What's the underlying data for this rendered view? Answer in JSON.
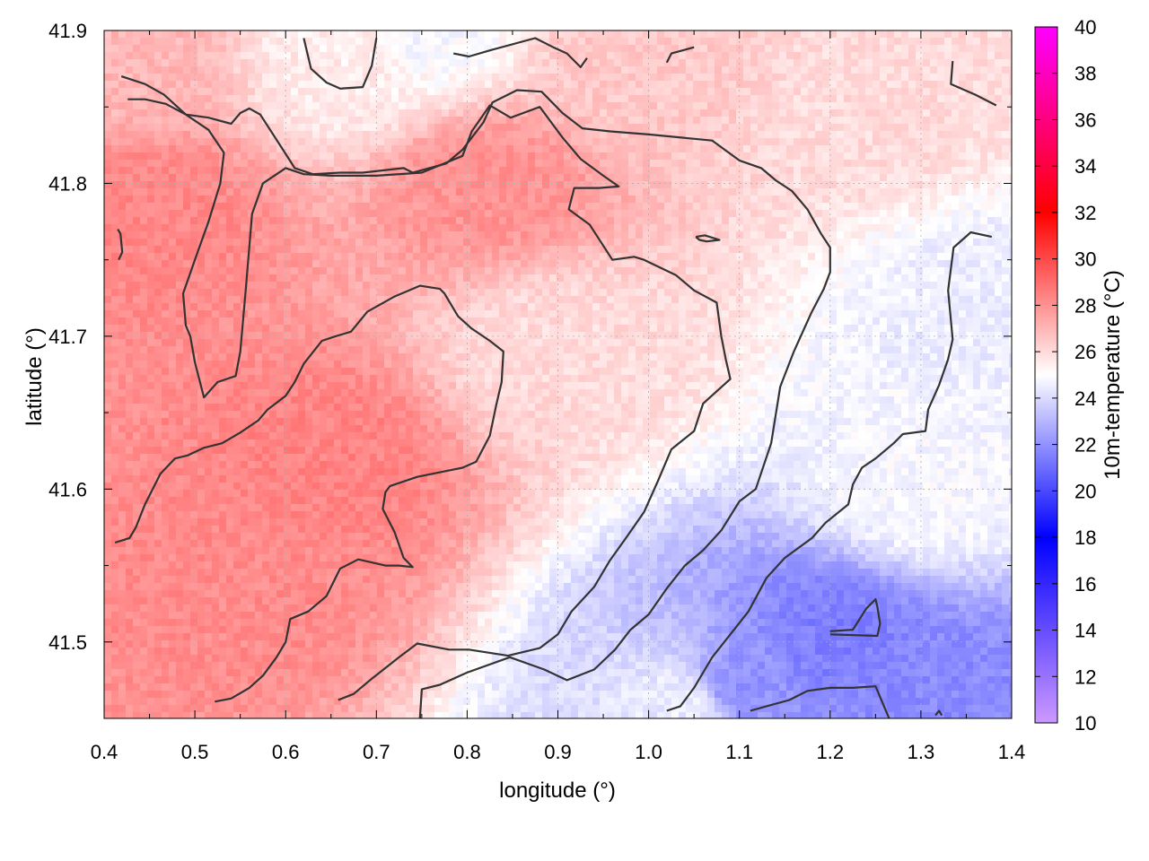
{
  "chart_data": {
    "type": "heatmap",
    "xlabel": "longitude (°)",
    "ylabel": "latitude (°)",
    "colorbar_label": "10m-temperature (°C)",
    "xlim": [
      0.4,
      1.4
    ],
    "ylim": [
      41.45,
      41.9
    ],
    "xticks": [
      "0.4",
      "0.5",
      "0.6",
      "0.7",
      "0.8",
      "0.9",
      "1.0",
      "1.1",
      "1.2",
      "1.3",
      "1.4"
    ],
    "yticks": [
      "41.5",
      "41.6",
      "41.7",
      "41.8",
      "41.9"
    ],
    "colorbar_range": [
      10,
      40
    ],
    "colorbar_ticks": [
      "10",
      "12",
      "14",
      "16",
      "18",
      "20",
      "22",
      "24",
      "26",
      "28",
      "30",
      "32",
      "34",
      "36",
      "38",
      "40"
    ],
    "colormap": [
      {
        "value": 10,
        "color": "#cc99ff"
      },
      {
        "value": 18,
        "color": "#0000ff"
      },
      {
        "value": 25,
        "color": "#ffffff"
      },
      {
        "value": 32,
        "color": "#ff0000"
      },
      {
        "value": 40,
        "color": "#ff00ff"
      }
    ],
    "grid": true,
    "field_regions": [
      {
        "lon": 0.45,
        "lat": 41.78,
        "temp": 28.3
      },
      {
        "lon": 0.65,
        "lat": 41.62,
        "temp": 28.4
      },
      {
        "lon": 0.55,
        "lat": 41.54,
        "temp": 28.2
      },
      {
        "lon": 0.82,
        "lat": 41.8,
        "temp": 28.0
      },
      {
        "lon": 0.9,
        "lat": 41.69,
        "temp": 26.0
      },
      {
        "lon": 0.42,
        "lat": 41.88,
        "temp": 27.0
      },
      {
        "lon": 0.98,
        "lat": 41.88,
        "temp": 26.5
      },
      {
        "lon": 1.25,
        "lat": 41.85,
        "temp": 26.0
      },
      {
        "lon": 1.38,
        "lat": 41.72,
        "temp": 24.5
      },
      {
        "lon": 1.3,
        "lat": 41.6,
        "temp": 24.8
      },
      {
        "lon": 1.2,
        "lat": 41.5,
        "temp": 21.5
      },
      {
        "lon": 1.1,
        "lat": 41.47,
        "temp": 22.0
      },
      {
        "lon": 1.32,
        "lat": 41.46,
        "temp": 21.8
      },
      {
        "lon": 1.04,
        "lat": 41.46,
        "temp": 24.5
      },
      {
        "lon": 0.68,
        "lat": 41.88,
        "temp": 25.5
      },
      {
        "lon": 0.75,
        "lat": 41.9,
        "temp": 24.8
      }
    ],
    "contours": [
      [
        [
          0.419,
          41.87
        ],
        [
          0.445,
          41.865
        ],
        [
          0.466,
          41.858
        ],
        [
          0.49,
          41.845
        ],
        [
          0.515,
          41.843
        ],
        [
          0.54,
          41.839
        ],
        [
          0.55,
          41.846
        ],
        [
          0.56,
          41.849
        ],
        [
          0.572,
          41.845
        ],
        [
          0.597,
          41.822
        ],
        [
          0.61,
          41.81
        ],
        [
          0.63,
          41.806
        ],
        [
          0.66,
          41.807
        ],
        [
          0.685,
          41.807
        ],
        [
          0.73,
          41.81
        ],
        [
          0.74,
          41.807
        ],
        [
          0.777,
          41.813
        ],
        [
          0.795,
          41.822
        ],
        [
          0.818,
          41.84
        ],
        [
          0.828,
          41.853
        ],
        [
          0.855,
          41.861
        ],
        [
          0.882,
          41.86
        ],
        [
          0.905,
          41.846
        ],
        [
          0.927,
          41.836
        ],
        [
          0.958,
          41.834
        ],
        [
          1.0,
          41.832
        ],
        [
          1.07,
          41.828
        ],
        [
          1.1,
          41.815
        ],
        [
          1.124,
          41.81
        ],
        [
          1.14,
          41.802
        ],
        [
          1.158,
          41.795
        ],
        [
          1.175,
          41.783
        ],
        [
          1.19,
          41.767
        ],
        [
          1.2,
          41.758
        ],
        [
          1.2,
          41.742
        ],
        [
          1.193,
          41.731
        ],
        [
          1.179,
          41.715
        ],
        [
          1.16,
          41.69
        ],
        [
          1.145,
          41.667
        ],
        [
          1.135,
          41.63
        ],
        [
          1.118,
          41.6
        ],
        [
          1.1,
          41.592
        ],
        [
          1.08,
          41.573
        ],
        [
          1.06,
          41.56
        ],
        [
          1.04,
          41.55
        ],
        [
          1.02,
          41.535
        ],
        [
          1.0,
          41.518
        ],
        [
          0.98,
          41.508
        ],
        [
          0.963,
          41.495
        ],
        [
          0.94,
          41.482
        ],
        [
          0.91,
          41.475
        ],
        [
          0.885,
          41.482
        ],
        [
          0.847,
          41.49
        ],
        [
          0.8,
          41.48
        ],
        [
          0.77,
          41.472
        ],
        [
          0.75,
          41.469
        ],
        [
          0.748,
          41.45
        ]
      ],
      [
        [
          0.426,
          41.855
        ],
        [
          0.445,
          41.855
        ],
        [
          0.468,
          41.852
        ],
        [
          0.49,
          41.845
        ],
        [
          0.515,
          41.835
        ],
        [
          0.532,
          41.82
        ],
        [
          0.528,
          41.8
        ],
        [
          0.515,
          41.775
        ],
        [
          0.5,
          41.75
        ],
        [
          0.487,
          41.728
        ],
        [
          0.49,
          41.707
        ],
        [
          0.495,
          41.7
        ],
        [
          0.5,
          41.683
        ],
        [
          0.51,
          41.66
        ],
        [
          0.525,
          41.67
        ],
        [
          0.545,
          41.674
        ],
        [
          0.55,
          41.69
        ],
        [
          0.556,
          41.73
        ],
        [
          0.563,
          41.78
        ],
        [
          0.575,
          41.8
        ],
        [
          0.6,
          41.81
        ],
        [
          0.62,
          41.806
        ],
        [
          0.65,
          41.805
        ],
        [
          0.7,
          41.805
        ],
        [
          0.75,
          41.807
        ],
        [
          0.795,
          41.818
        ],
        [
          0.805,
          41.834
        ],
        [
          0.825,
          41.851
        ],
        [
          0.848,
          41.843
        ],
        [
          0.88,
          41.85
        ],
        [
          0.905,
          41.83
        ],
        [
          0.925,
          41.816
        ],
        [
          0.95,
          41.805
        ],
        [
          0.967,
          41.798
        ],
        [
          0.945,
          41.797
        ],
        [
          0.918,
          41.797
        ],
        [
          0.912,
          41.783
        ],
        [
          0.935,
          41.773
        ],
        [
          0.96,
          41.75
        ],
        [
          0.984,
          41.752
        ],
        [
          0.995,
          41.75
        ],
        [
          1.03,
          41.74
        ],
        [
          1.05,
          41.73
        ],
        [
          1.075,
          41.722
        ],
        [
          1.08,
          41.7
        ],
        [
          1.085,
          41.685
        ],
        [
          1.09,
          41.672
        ],
        [
          1.06,
          41.656
        ],
        [
          1.05,
          41.638
        ],
        [
          1.025,
          41.626
        ],
        [
          1.01,
          41.605
        ],
        [
          0.995,
          41.585
        ],
        [
          0.975,
          41.568
        ],
        [
          0.957,
          41.553
        ],
        [
          0.94,
          41.536
        ],
        [
          0.915,
          41.52
        ],
        [
          0.9,
          41.505
        ],
        [
          0.88,
          41.496
        ],
        [
          0.845,
          41.491
        ],
        [
          0.802,
          41.495
        ],
        [
          0.78,
          41.495
        ],
        [
          0.745,
          41.499
        ],
        [
          0.725,
          41.49
        ],
        [
          0.695,
          41.476
        ],
        [
          0.675,
          41.466
        ],
        [
          0.658,
          41.462
        ]
      ],
      [
        [
          0.412,
          41.565
        ],
        [
          0.428,
          41.568
        ],
        [
          0.435,
          41.575
        ],
        [
          0.445,
          41.59
        ],
        [
          0.462,
          41.61
        ],
        [
          0.478,
          41.62
        ],
        [
          0.492,
          41.622
        ],
        [
          0.51,
          41.627
        ],
        [
          0.53,
          41.63
        ],
        [
          0.55,
          41.637
        ],
        [
          0.57,
          41.645
        ],
        [
          0.58,
          41.652
        ],
        [
          0.6,
          41.661
        ],
        [
          0.61,
          41.67
        ],
        [
          0.62,
          41.682
        ],
        [
          0.64,
          41.697
        ],
        [
          0.655,
          41.7
        ],
        [
          0.672,
          41.703
        ],
        [
          0.69,
          41.716
        ],
        [
          0.72,
          41.726
        ],
        [
          0.748,
          41.733
        ],
        [
          0.77,
          41.731
        ],
        [
          0.775,
          41.728
        ],
        [
          0.79,
          41.713
        ],
        [
          0.805,
          41.705
        ],
        [
          0.825,
          41.697
        ],
        [
          0.84,
          41.69
        ],
        [
          0.838,
          41.67
        ],
        [
          0.832,
          41.655
        ],
        [
          0.825,
          41.635
        ],
        [
          0.81,
          41.618
        ],
        [
          0.795,
          41.614
        ],
        [
          0.77,
          41.611
        ],
        [
          0.745,
          41.608
        ],
        [
          0.715,
          41.602
        ],
        [
          0.71,
          41.598
        ],
        [
          0.707,
          41.587
        ],
        [
          0.72,
          41.572
        ],
        [
          0.73,
          41.555
        ],
        [
          0.74,
          41.549
        ],
        [
          0.725,
          41.55
        ],
        [
          0.71,
          41.55
        ],
        [
          0.68,
          41.554
        ],
        [
          0.66,
          41.548
        ],
        [
          0.645,
          41.53
        ],
        [
          0.625,
          41.52
        ],
        [
          0.605,
          41.515
        ],
        [
          0.6,
          41.5
        ],
        [
          0.59,
          41.49
        ],
        [
          0.575,
          41.478
        ],
        [
          0.56,
          41.47
        ],
        [
          0.54,
          41.463
        ],
        [
          0.522,
          41.461
        ]
      ],
      [
        [
          0.62,
          41.895
        ],
        [
          0.628,
          41.875
        ],
        [
          0.645,
          41.866
        ],
        [
          0.66,
          41.862
        ],
        [
          0.685,
          41.863
        ],
        [
          0.695,
          41.877
        ],
        [
          0.7,
          41.895
        ]
      ],
      [
        [
          0.785,
          41.885
        ],
        [
          0.802,
          41.883
        ],
        [
          0.825,
          41.887
        ],
        [
          0.875,
          41.895
        ],
        [
          0.895,
          41.889
        ],
        [
          0.91,
          41.885
        ],
        [
          0.925,
          41.876
        ],
        [
          0.932,
          41.882
        ]
      ],
      [
        [
          1.02,
          41.879
        ],
        [
          1.025,
          41.885
        ],
        [
          1.05,
          41.889
        ]
      ],
      [
        [
          0.415,
          41.77
        ],
        [
          0.418,
          41.767
        ],
        [
          0.42,
          41.755
        ],
        [
          0.416,
          41.75
        ]
      ],
      [
        [
          1.052,
          41.765
        ],
        [
          1.062,
          41.766
        ],
        [
          1.078,
          41.763
        ],
        [
          1.064,
          41.762
        ],
        [
          1.056,
          41.763
        ],
        [
          1.052,
          41.765
        ]
      ],
      [
        [
          1.335,
          41.88
        ],
        [
          1.333,
          41.865
        ],
        [
          1.36,
          41.858
        ],
        [
          1.383,
          41.851
        ]
      ],
      [
        [
          1.378,
          41.765
        ],
        [
          1.355,
          41.768
        ],
        [
          1.336,
          41.758
        ],
        [
          1.33,
          41.73
        ],
        [
          1.335,
          41.698
        ],
        [
          1.33,
          41.685
        ],
        [
          1.32,
          41.668
        ],
        [
          1.308,
          41.652
        ],
        [
          1.305,
          41.638
        ],
        [
          1.28,
          41.636
        ],
        [
          1.27,
          41.63
        ],
        [
          1.25,
          41.62
        ],
        [
          1.235,
          41.614
        ],
        [
          1.225,
          41.603
        ],
        [
          1.22,
          41.59
        ],
        [
          1.195,
          41.578
        ],
        [
          1.18,
          41.568
        ],
        [
          1.15,
          41.555
        ],
        [
          1.13,
          41.542
        ],
        [
          1.11,
          41.52
        ],
        [
          1.09,
          41.505
        ],
        [
          1.07,
          41.49
        ],
        [
          1.05,
          41.47
        ],
        [
          1.035,
          41.458
        ],
        [
          1.02,
          41.455
        ]
      ],
      [
        [
          1.112,
          41.455
        ],
        [
          1.13,
          41.458
        ],
        [
          1.155,
          41.462
        ],
        [
          1.175,
          41.468
        ],
        [
          1.2,
          41.47
        ],
        [
          1.225,
          41.47
        ],
        [
          1.25,
          41.471
        ],
        [
          1.265,
          41.45
        ]
      ],
      [
        [
          1.2,
          41.507
        ],
        [
          1.225,
          41.508
        ],
        [
          1.24,
          41.522
        ],
        [
          1.25,
          41.528
        ],
        [
          1.252,
          41.523
        ],
        [
          1.255,
          41.512
        ],
        [
          1.252,
          41.504
        ],
        [
          1.2,
          41.505
        ]
      ],
      [
        [
          1.316,
          41.452
        ],
        [
          1.32,
          41.455
        ],
        [
          1.323,
          41.452
        ]
      ]
    ]
  }
}
